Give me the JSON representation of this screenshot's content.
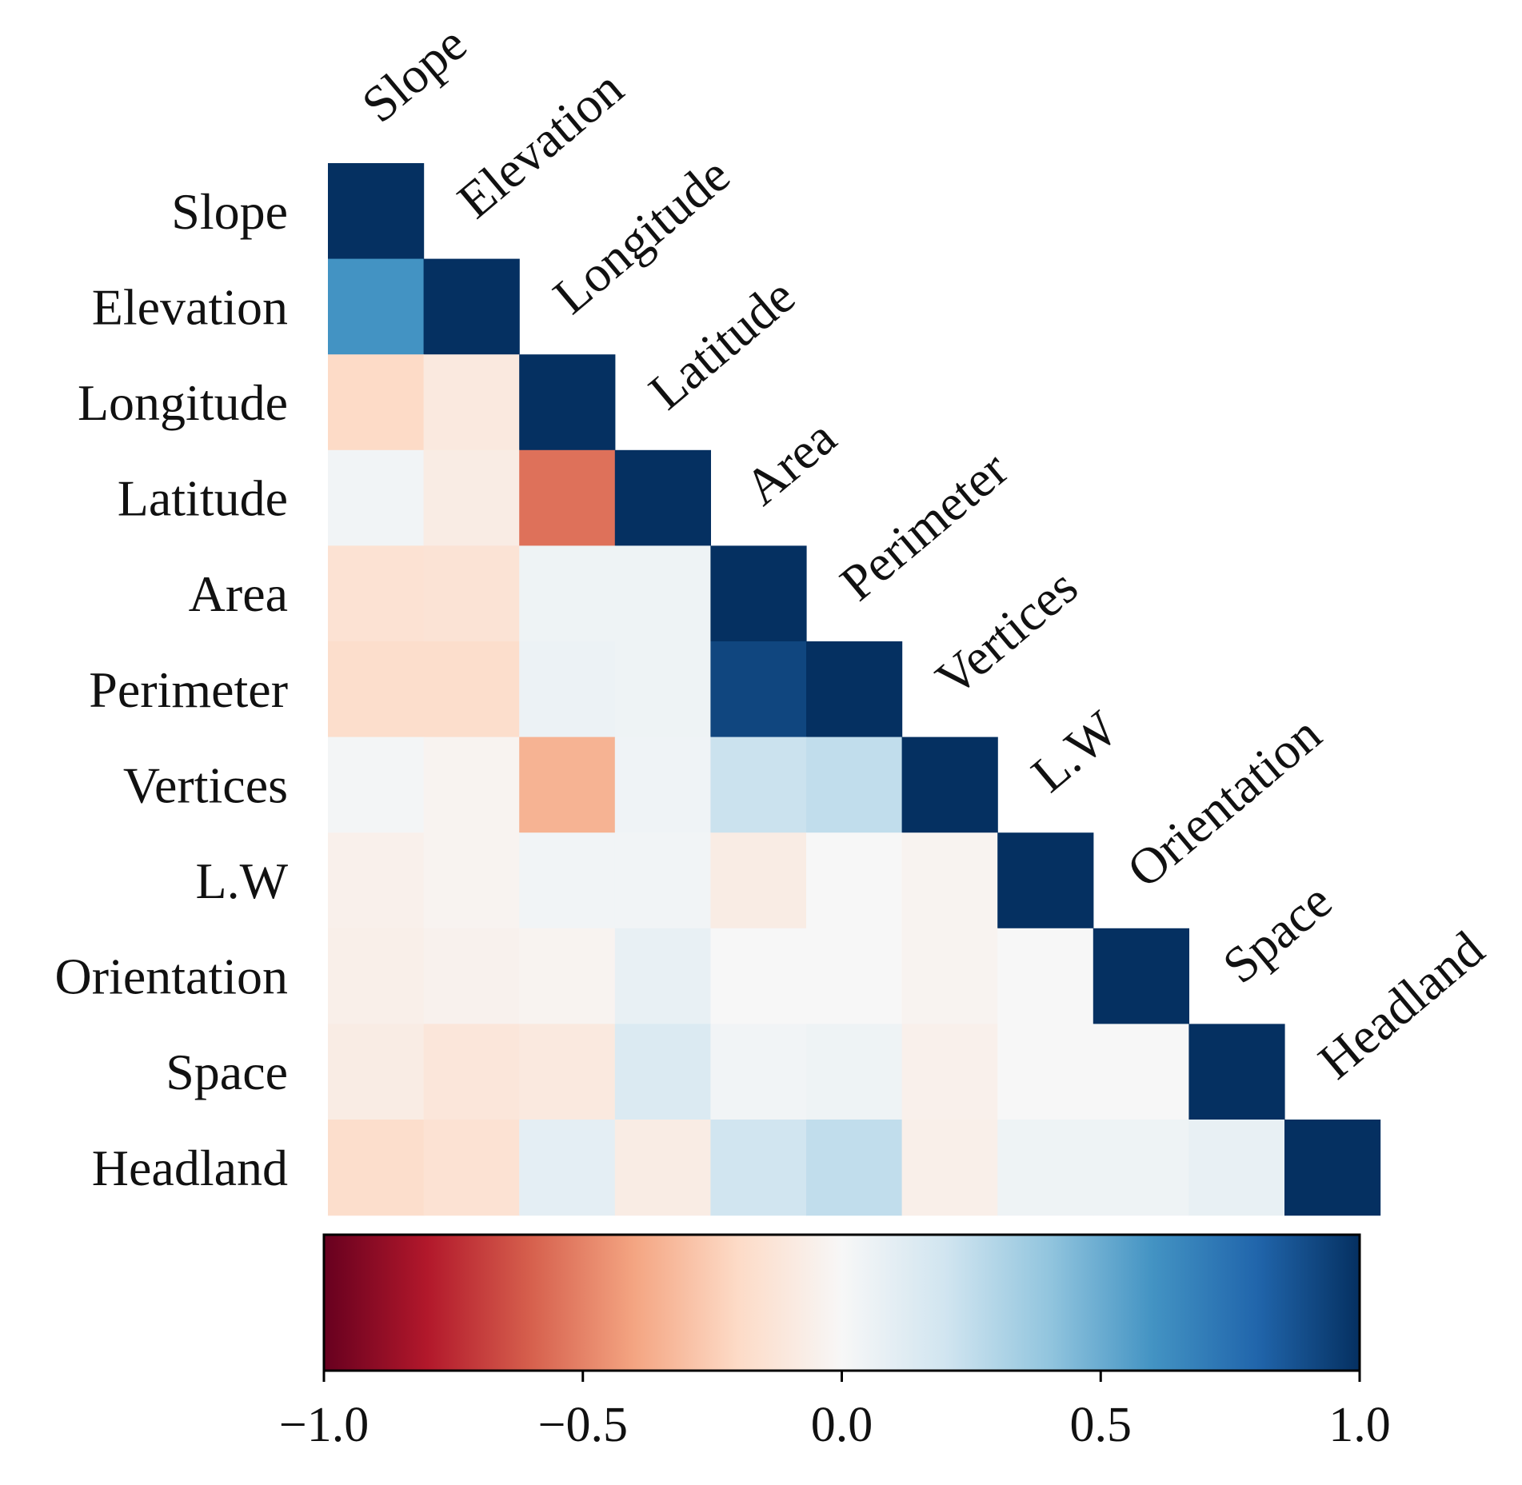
{
  "chart_data": {
    "type": "heatmap",
    "title": "",
    "variables": [
      "Slope",
      "Elevation",
      "Longitude",
      "Latitude",
      "Area",
      "Perimeter",
      "Vertices",
      "L.W",
      "Orientation",
      "Space",
      "Headland"
    ],
    "lower_triangle": true,
    "matrix": [
      [
        1.0
      ],
      [
        0.6,
        1.0
      ],
      [
        -0.2,
        -0.1,
        1.0
      ],
      [
        0.03,
        -0.08,
        -0.55,
        1.0
      ],
      [
        -0.15,
        -0.14,
        0.05,
        0.05,
        1.0
      ],
      [
        -0.18,
        -0.18,
        0.06,
        0.05,
        0.92,
        1.0
      ],
      [
        0.02,
        -0.03,
        -0.35,
        0.04,
        0.22,
        0.25,
        1.0
      ],
      [
        -0.05,
        -0.03,
        0.03,
        0.03,
        -0.08,
        0.0,
        -0.03,
        1.0
      ],
      [
        -0.06,
        -0.04,
        -0.03,
        0.08,
        0.0,
        0.0,
        -0.03,
        0.0,
        1.0
      ],
      [
        -0.08,
        -0.12,
        -0.1,
        0.15,
        0.03,
        0.05,
        -0.05,
        0.0,
        0.0,
        1.0
      ],
      [
        -0.18,
        -0.15,
        0.1,
        -0.08,
        0.2,
        0.25,
        -0.06,
        0.05,
        0.05,
        0.08,
        1.0
      ]
    ],
    "colormap": "RdBu",
    "colorbar": {
      "range": [
        -1.0,
        1.0
      ],
      "ticks": [
        -1.0,
        -0.5,
        0.0,
        0.5,
        1.0
      ],
      "tick_labels": [
        "−1.0",
        "−0.5",
        "0.0",
        "0.5",
        "1.0"
      ],
      "orientation": "horizontal",
      "placement": "bottom"
    },
    "colors": {
      "stops": [
        "#67001f",
        "#b2182b",
        "#d6604d",
        "#f4a582",
        "#fddbc7",
        "#f7f7f7",
        "#d1e5f0",
        "#92c5de",
        "#4393c3",
        "#2166ac",
        "#053061"
      ]
    },
    "xlabel": "",
    "ylabel": ""
  }
}
